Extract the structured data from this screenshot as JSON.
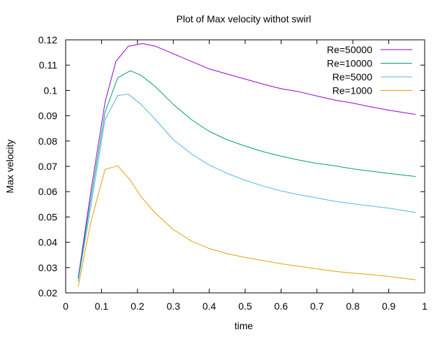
{
  "chart_data": {
    "type": "line",
    "title": "Plot of Max velocity withot swirl",
    "xlabel": "time",
    "ylabel": "Max velocity",
    "xlim": [
      0,
      1
    ],
    "ylim": [
      0.02,
      0.12
    ],
    "xticks": [
      0,
      0.1,
      0.2,
      0.3,
      0.4,
      0.5,
      0.6,
      0.7,
      0.8,
      0.9,
      1
    ],
    "xtick_labels": [
      "0",
      "0.1",
      "0.2",
      "0.3",
      "0.4",
      "0.5",
      "0.6",
      "0.7",
      "0.8",
      "0.9",
      "1"
    ],
    "yticks": [
      0.02,
      0.03,
      0.04,
      0.05,
      0.06,
      0.07,
      0.08,
      0.09,
      0.1,
      0.11,
      0.12
    ],
    "ytick_labels": [
      "0.02",
      "0.03",
      "0.04",
      "0.05",
      "0.06",
      "0.07",
      "0.08",
      "0.09",
      "0.1",
      "0.11",
      "0.12"
    ],
    "grid": false,
    "legend_position": "top-right",
    "series": [
      {
        "name": "Re=50000",
        "color": "#9400d3",
        "x": [
          0.035,
          0.07,
          0.11,
          0.14,
          0.175,
          0.215,
          0.25,
          0.3,
          0.35,
          0.4,
          0.45,
          0.5,
          0.55,
          0.6,
          0.65,
          0.7,
          0.75,
          0.8,
          0.85,
          0.9,
          0.975
        ],
        "y": [
          0.026,
          0.06,
          0.0955,
          0.1115,
          0.1175,
          0.1185,
          0.1175,
          0.1145,
          0.1115,
          0.1085,
          0.1065,
          0.1045,
          0.1025,
          0.1007,
          0.0995,
          0.0978,
          0.0962,
          0.095,
          0.0935,
          0.0922,
          0.0905
        ]
      },
      {
        "name": "Re=10000",
        "color": "#009e73",
        "x": [
          0.035,
          0.07,
          0.11,
          0.145,
          0.18,
          0.21,
          0.25,
          0.3,
          0.35,
          0.4,
          0.45,
          0.5,
          0.55,
          0.6,
          0.65,
          0.7,
          0.75,
          0.8,
          0.85,
          0.9,
          0.975
        ],
        "y": [
          0.0255,
          0.057,
          0.0915,
          0.105,
          0.1078,
          0.106,
          0.1015,
          0.0945,
          0.0885,
          0.0838,
          0.0805,
          0.078,
          0.0758,
          0.074,
          0.0725,
          0.0712,
          0.0702,
          0.069,
          0.0681,
          0.0672,
          0.066
        ]
      },
      {
        "name": "Re=5000",
        "color": "#56b4e9",
        "x": [
          0.035,
          0.07,
          0.11,
          0.145,
          0.175,
          0.21,
          0.25,
          0.3,
          0.35,
          0.4,
          0.45,
          0.5,
          0.55,
          0.6,
          0.65,
          0.7,
          0.75,
          0.8,
          0.85,
          0.9,
          0.975
        ],
        "y": [
          0.0245,
          0.054,
          0.0885,
          0.098,
          0.0985,
          0.0945,
          0.0885,
          0.0805,
          0.075,
          0.0705,
          0.0672,
          0.0645,
          0.0622,
          0.0603,
          0.0588,
          0.0575,
          0.0562,
          0.0552,
          0.0543,
          0.0535,
          0.0518
        ]
      },
      {
        "name": "Re=1000",
        "color": "#e69f00",
        "x": [
          0.035,
          0.07,
          0.11,
          0.145,
          0.18,
          0.21,
          0.25,
          0.3,
          0.35,
          0.4,
          0.45,
          0.5,
          0.55,
          0.6,
          0.65,
          0.7,
          0.75,
          0.8,
          0.85,
          0.9,
          0.975
        ],
        "y": [
          0.0225,
          0.048,
          0.0688,
          0.0702,
          0.0645,
          0.058,
          0.0515,
          0.045,
          0.0405,
          0.0375,
          0.0355,
          0.034,
          0.0328,
          0.0315,
          0.0305,
          0.0295,
          0.0285,
          0.0278,
          0.0272,
          0.0265,
          0.0252
        ]
      }
    ]
  }
}
